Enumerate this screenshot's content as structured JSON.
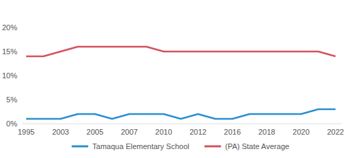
{
  "chart_data": {
    "type": "line",
    "categories": [
      "1995",
      null,
      "2003",
      null,
      "2005",
      null,
      "2007",
      null,
      "2010",
      null,
      "2012",
      null,
      "2016",
      null,
      "2018",
      null,
      "2020",
      null,
      "2022"
    ],
    "series": [
      {
        "name": "Tamaqua Elementary School",
        "color": "#2b8fd0",
        "values": [
          1,
          1,
          1,
          2,
          2,
          1,
          2,
          2,
          2,
          1,
          2,
          1,
          1,
          2,
          2,
          2,
          2,
          3,
          3
        ]
      },
      {
        "name": "(PA) State Average",
        "color": "#d4525f",
        "values": [
          14,
          14,
          15,
          16,
          16,
          16,
          16,
          16,
          15,
          15,
          15,
          15,
          15,
          15,
          15,
          15,
          15,
          15,
          14
        ]
      }
    ],
    "ylim": [
      0,
      20
    ],
    "yticks": [
      {
        "value": 0,
        "label": "0%"
      },
      {
        "value": 5,
        "label": "5%"
      },
      {
        "value": 10,
        "label": "10%"
      },
      {
        "value": 15,
        "label": "15%"
      },
      {
        "value": 20,
        "label": "20%"
      }
    ],
    "grid": false,
    "legend": "bottom"
  }
}
